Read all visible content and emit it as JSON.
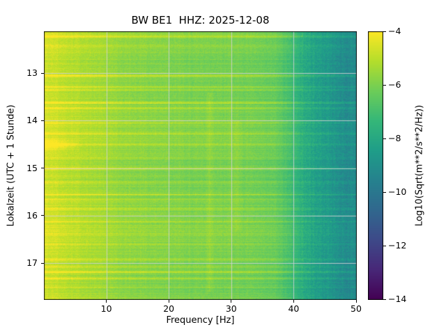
{
  "figure": {
    "title": "BW BE1  HHZ: 2025-12-08",
    "xlabel": "Frequency [Hz]",
    "ylabel": "Lokalzeit (UTC + 1 Stunde)",
    "background": "#ffffff"
  },
  "chart_data": {
    "type": "heatmap",
    "subtype": "spectrogram",
    "title": "BW BE1  HHZ: 2025-12-08",
    "xlabel": "Frequency [Hz]",
    "ylabel": "Lokalzeit (UTC + 1 Stunde)",
    "xlim": [
      0,
      50
    ],
    "time_range_hours": [
      12.12,
      17.76
    ],
    "time_axis_increases_downward": true,
    "x_ticks": [
      10,
      20,
      30,
      40,
      50
    ],
    "y_ticks": [
      13,
      14,
      15,
      16,
      17
    ],
    "grid": true,
    "grid_color": "#d4d4d4",
    "colorbar": {
      "label": "Log10(Sqrt(m**2/s**2/Hz))",
      "ticks": [
        -4,
        -6,
        -8,
        -10,
        -12,
        -14
      ],
      "range": [
        -14,
        -4
      ],
      "colormap": "viridis"
    },
    "viridis_stops": [
      "#440154",
      "#482878",
      "#3e4a89",
      "#31688e",
      "#26828e",
      "#1f9e89",
      "#35b779",
      "#6dcd59",
      "#b4de2c",
      "#fde725"
    ],
    "freq_profile": {
      "freq_hz": [
        0,
        1.5,
        3,
        6,
        10,
        15,
        20,
        25,
        30,
        34,
        37,
        39,
        41,
        43,
        45,
        47,
        50
      ],
      "log_amp": [
        -4.7,
        -4.8,
        -4.95,
        -5.2,
        -5.5,
        -5.75,
        -5.9,
        -6.0,
        -6.05,
        -6.15,
        -6.35,
        -6.9,
        -7.6,
        -8.2,
        -8.6,
        -8.95,
        -9.3
      ]
    },
    "events_bright_rows": [
      {
        "time": 12.22,
        "strength": 0.55
      },
      {
        "time": 12.42,
        "strength": 0.35
      },
      {
        "time": 13.05,
        "strength": 1.0
      },
      {
        "time": 13.28,
        "strength": 0.55
      },
      {
        "time": 13.35,
        "strength": 0.4
      },
      {
        "time": 13.62,
        "strength": 0.9
      },
      {
        "time": 13.73,
        "strength": 0.65
      },
      {
        "time": 14.05,
        "strength": 0.4
      },
      {
        "time": 14.27,
        "strength": 0.5
      },
      {
        "time": 14.5,
        "strength": 0.55
      },
      {
        "time": 14.78,
        "strength": 0.35
      },
      {
        "time": 15.0,
        "strength": 0.9
      },
      {
        "time": 15.3,
        "strength": 0.5
      },
      {
        "time": 15.55,
        "strength": 0.8
      },
      {
        "time": 15.65,
        "strength": 0.5
      },
      {
        "time": 15.85,
        "strength": 0.5
      },
      {
        "time": 16.12,
        "strength": 0.35
      },
      {
        "time": 16.38,
        "strength": 0.35
      },
      {
        "time": 16.6,
        "strength": 0.5
      },
      {
        "time": 16.92,
        "strength": 0.35
      },
      {
        "time": 17.07,
        "strength": 0.5
      },
      {
        "time": 17.18,
        "strength": 0.9
      },
      {
        "time": 17.32,
        "strength": 0.75
      },
      {
        "time": 17.5,
        "strength": 0.4
      }
    ],
    "low_freq_blob": {
      "time": 14.5,
      "freq_max": 6,
      "boost": 1.5,
      "half_width_hours": 0.15
    },
    "bright_columns": [
      {
        "freq": 26.5,
        "half_width": 0.7,
        "boost": 0.5,
        "t_start": 13.4,
        "t_end": 17.6
      },
      {
        "freq": 30.7,
        "half_width": 1.3,
        "boost": 0.35,
        "t_start": 14.0,
        "t_end": 16.3
      }
    ]
  },
  "ticks_display": {
    "x": [
      "10",
      "20",
      "30",
      "40",
      "50"
    ],
    "y": [
      "13",
      "14",
      "15",
      "16",
      "17"
    ],
    "cb": [
      "−4",
      "−6",
      "−8",
      "−10",
      "−12",
      "−14"
    ]
  }
}
